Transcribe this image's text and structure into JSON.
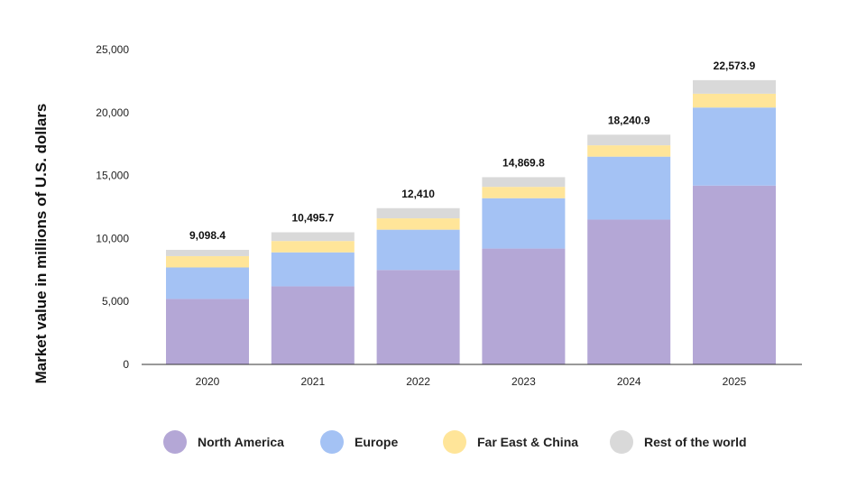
{
  "chart_data": {
    "type": "bar",
    "stacked": true,
    "title": "",
    "xlabel": "",
    "ylabel": "Market value in millions of U.S. dollars",
    "ylim": [
      0,
      25000
    ],
    "yticks": [
      0,
      5000,
      10000,
      15000,
      20000,
      25000
    ],
    "ytick_labels": [
      "0",
      "5,000",
      "10,000",
      "15,000",
      "20,000",
      "25,000"
    ],
    "grid": false,
    "legend_position": "bottom",
    "categories": [
      "2020",
      "2021",
      "2022",
      "2023",
      "2024",
      "2025"
    ],
    "series": [
      {
        "name": "North America",
        "color": "#b4a7d6",
        "values": [
          5200,
          6200,
          7500,
          9200,
          11500,
          14200
        ]
      },
      {
        "name": "Europe",
        "color": "#a4c2f4",
        "values": [
          2500,
          2700,
          3200,
          4000,
          5000,
          6200
        ]
      },
      {
        "name": "Far East & China",
        "color": "#ffe599",
        "values": [
          900,
          900,
          900,
          900,
          900,
          1100
        ]
      },
      {
        "name": "Rest of the world",
        "color": "#d9d9d9",
        "values": [
          498.4,
          695.7,
          810,
          769.8,
          840.9,
          1073.9
        ]
      }
    ],
    "totals": [
      9098.4,
      10495.7,
      12410,
      14869.8,
      18240.9,
      22573.9
    ],
    "total_labels": [
      "9,098.4",
      "10,495.7",
      "12,410",
      "14,869.8",
      "18,240.9",
      "22,573.9"
    ]
  }
}
